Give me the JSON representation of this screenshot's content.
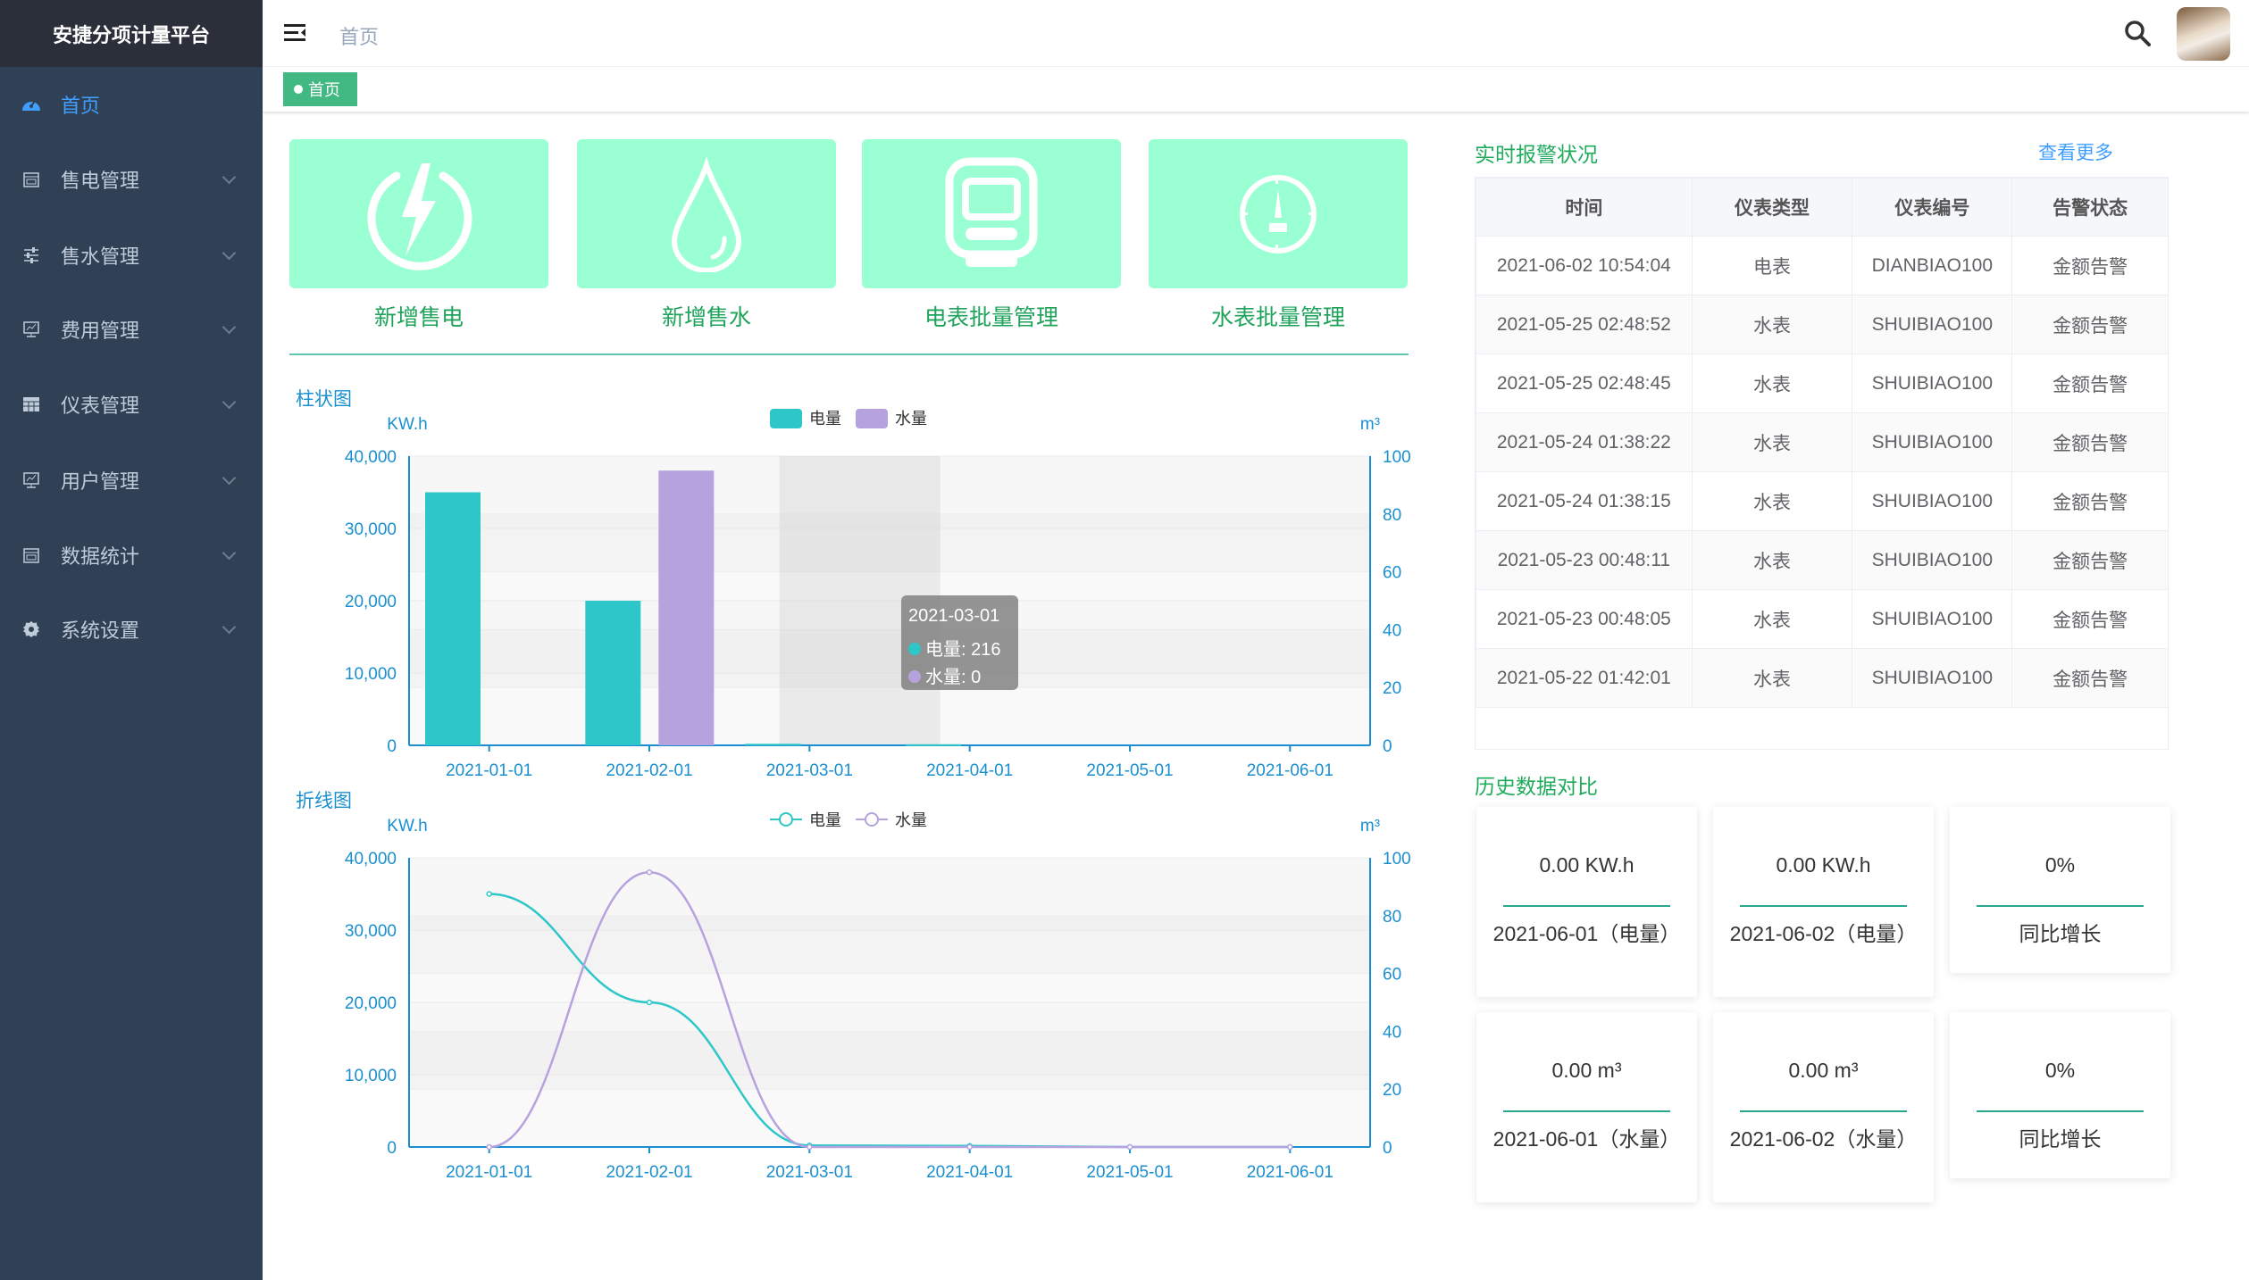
{
  "app": {
    "title": "安捷分项计量平台"
  },
  "sidebar": {
    "items": [
      {
        "label": "首页",
        "icon": "dashboard-icon",
        "active": true
      },
      {
        "label": "售电管理",
        "icon": "calendar-icon"
      },
      {
        "label": "售水管理",
        "icon": "sliders-icon"
      },
      {
        "label": "费用管理",
        "icon": "monitor-chart-icon"
      },
      {
        "label": "仪表管理",
        "icon": "table-icon"
      },
      {
        "label": "用户管理",
        "icon": "monitor-chart-icon"
      },
      {
        "label": "数据统计",
        "icon": "calendar-icon"
      },
      {
        "label": "系统设置",
        "icon": "gear-icon"
      }
    ]
  },
  "header": {
    "breadcrumb": "首页",
    "menu_icon": "hamburger-icon",
    "search_icon": "search-icon"
  },
  "tags": [
    {
      "label": "首页",
      "active": true
    }
  ],
  "tiles": [
    {
      "label": "新增售电",
      "icon": "lightning-power-icon"
    },
    {
      "label": "新增售水",
      "icon": "water-drop-icon"
    },
    {
      "label": "电表批量管理",
      "icon": "electric-meter-icon"
    },
    {
      "label": "水表批量管理",
      "icon": "water-meter-gauge-icon"
    }
  ],
  "colors": {
    "tile_bg": "#9affd2",
    "elec": "#2ec7c9",
    "water": "#b6a2de",
    "accent_green": "#1fab5c",
    "axis": "#1a8fd0"
  },
  "chart_data": [
    {
      "type": "bar",
      "title": "柱状图",
      "categories": [
        "2021-01-01",
        "2021-02-01",
        "2021-03-01",
        "2021-04-01",
        "2021-05-01",
        "2021-06-01"
      ],
      "ylabel": "KW.h",
      "y2label": "m³",
      "ylim": [
        0,
        40000
      ],
      "y2lim": [
        0,
        100
      ],
      "yticks": [
        "0",
        "10,000",
        "20,000",
        "30,000",
        "40,000"
      ],
      "y2ticks": [
        "0",
        "20",
        "40",
        "60",
        "80",
        "100"
      ],
      "legend": "top-center",
      "series": [
        {
          "name": "电量",
          "axis": "left",
          "values": [
            35000,
            20000,
            216,
            150,
            0,
            0
          ]
        },
        {
          "name": "水量",
          "axis": "right",
          "values": [
            0,
            95,
            0,
            0,
            0,
            0
          ]
        }
      ],
      "tooltip": {
        "title": "2021-03-01",
        "lines": [
          "电量: 216",
          "水量: 0"
        ]
      }
    },
    {
      "type": "line",
      "title": "折线图",
      "categories": [
        "2021-01-01",
        "2021-02-01",
        "2021-03-01",
        "2021-04-01",
        "2021-05-01",
        "2021-06-01"
      ],
      "ylabel": "KW.h",
      "y2label": "m³",
      "ylim": [
        0,
        40000
      ],
      "y2lim": [
        0,
        100
      ],
      "yticks": [
        "0",
        "10,000",
        "20,000",
        "30,000",
        "40,000"
      ],
      "y2ticks": [
        "0",
        "20",
        "40",
        "60",
        "80",
        "100"
      ],
      "legend": "top-center",
      "series": [
        {
          "name": "电量",
          "axis": "left",
          "values": [
            35000,
            20000,
            216,
            150,
            0,
            0
          ]
        },
        {
          "name": "水量",
          "axis": "right",
          "values": [
            0,
            95,
            0,
            0,
            0,
            0
          ]
        }
      ]
    }
  ],
  "alarms": {
    "title": "实时报警状况",
    "more": "查看更多",
    "columns": [
      "时间",
      "仪表类型",
      "仪表编号",
      "告警状态"
    ],
    "rows": [
      [
        "2021-06-02 10:54:04",
        "电表",
        "DIANBIAO100",
        "金额告警"
      ],
      [
        "2021-05-25 02:48:52",
        "水表",
        "SHUIBIAO100",
        "金额告警"
      ],
      [
        "2021-05-25 02:48:45",
        "水表",
        "SHUIBIAO100",
        "金额告警"
      ],
      [
        "2021-05-24 01:38:22",
        "水表",
        "SHUIBIAO100",
        "金额告警"
      ],
      [
        "2021-05-24 01:38:15",
        "水表",
        "SHUIBIAO100",
        "金额告警"
      ],
      [
        "2021-05-23 00:48:11",
        "水表",
        "SHUIBIAO100",
        "金额告警"
      ],
      [
        "2021-05-23 00:48:05",
        "水表",
        "SHUIBIAO100",
        "金额告警"
      ],
      [
        "2021-05-22 01:42:01",
        "水表",
        "SHUIBIAO100",
        "金额告警"
      ]
    ]
  },
  "history": {
    "title": "历史数据对比",
    "cards": [
      {
        "value": "0.00 KW.h",
        "label": "2021-06-01（电量）"
      },
      {
        "value": "0.00 KW.h",
        "label": "2021-06-02（电量）"
      },
      {
        "value": "0%",
        "label": "同比增长"
      },
      {
        "value": "0.00 m³",
        "label": "2021-06-01（水量）"
      },
      {
        "value": "0.00 m³",
        "label": "2021-06-02（水量）"
      },
      {
        "value": "0%",
        "label": "同比增长"
      }
    ]
  }
}
